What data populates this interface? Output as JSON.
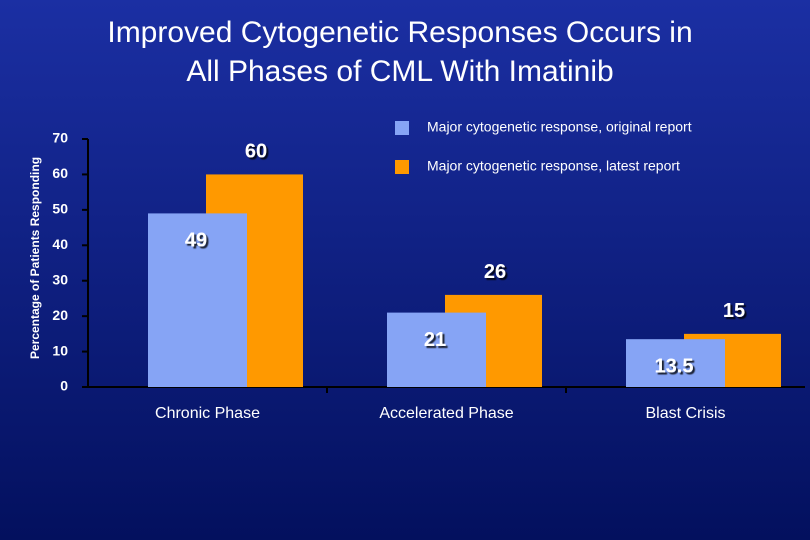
{
  "chart_data": {
    "type": "bar",
    "title": "Improved Cytogenetic Responses Occurs in All Phases of CML With Imatinib",
    "y_label": "Percentage of Patients Responding",
    "categories": [
      "Chronic Phase",
      "Accelerated Phase",
      "Blast Crisis"
    ],
    "series": [
      {
        "name": "Major cytogenetic response, original report",
        "color": "#86a4f5",
        "values": [
          49,
          21,
          13.5
        ]
      },
      {
        "name": "Major cytogenetic response, latest report",
        "color": "#ff9900",
        "values": [
          60,
          26,
          15
        ]
      }
    ],
    "ylim": [
      0,
      70
    ],
    "yticks": [
      0,
      10,
      20,
      30,
      40,
      50,
      60,
      70
    ],
    "legend": "upper right"
  }
}
